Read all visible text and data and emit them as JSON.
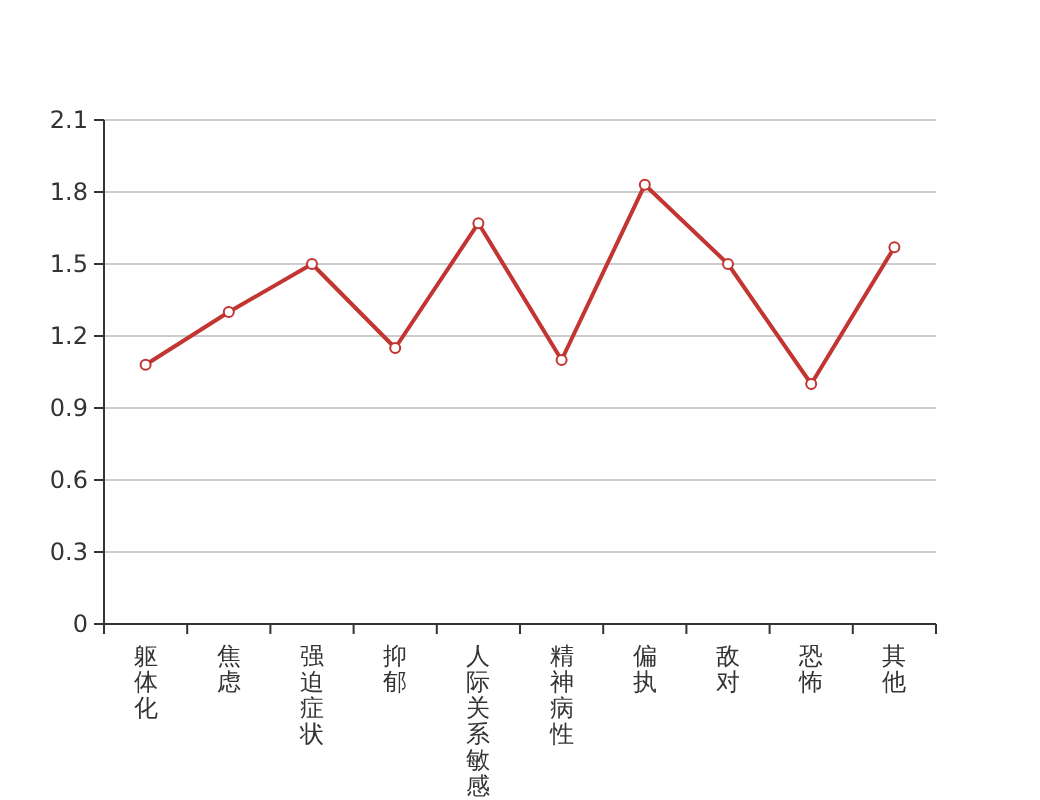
{
  "chart_data": {
    "type": "line",
    "categories": [
      "躯体化",
      "焦虑",
      "强迫症状",
      "抑郁",
      "人际关系敏感",
      "精神病性",
      "偏执",
      "敌对",
      "恐怖",
      "其他"
    ],
    "series": [
      {
        "color": "#c23531",
        "values": [
          1.08,
          1.3,
          1.5,
          1.15,
          1.67,
          1.1,
          1.83,
          1.5,
          1.0,
          1.57
        ]
      }
    ],
    "ylim": [
      0,
      2.1
    ],
    "yticks": [
      0,
      0.3,
      0.6,
      0.9,
      1.2,
      1.5,
      1.8,
      2.1
    ],
    "grid": "y",
    "marker": "circle",
    "line_style": "solid"
  }
}
